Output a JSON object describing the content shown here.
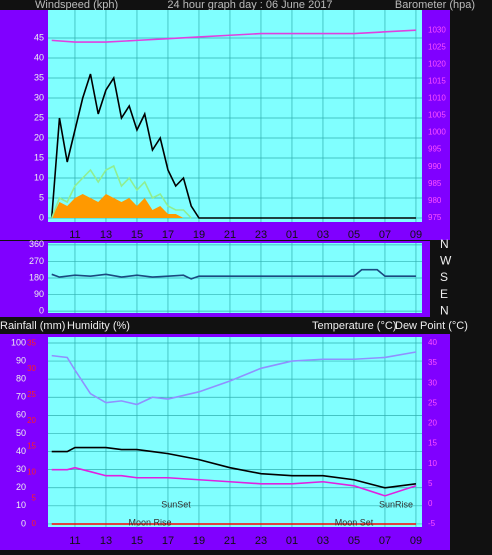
{
  "chart_data": [
    {
      "type": "line",
      "title": "24 hour graph day : 06 June 2017",
      "ylabel": "Windspeed (kph)",
      "y2label": "Barometer (hpa)",
      "xlim": [
        9.26,
        33.39
      ],
      "xticks": [
        11,
        13,
        15,
        17,
        19,
        21,
        23,
        {
          "value": 25,
          "label": "01"
        },
        {
          "value": 27,
          "label": "03"
        },
        {
          "value": 29,
          "label": "05"
        },
        {
          "value": 31,
          "label": "07"
        },
        {
          "value": 33,
          "label": "09"
        }
      ],
      "ylim": [
        -1,
        52
      ],
      "yticks": [
        0,
        5,
        10,
        15,
        20,
        25,
        30,
        35,
        40,
        45
      ],
      "y2lim": [
        973.8,
        1035.9
      ],
      "y2ticks": [
        975,
        980,
        985,
        990,
        995,
        1000,
        1005,
        1010,
        1015,
        1020,
        1025,
        1030
      ],
      "grid": true,
      "series": [
        {
          "color": "#ff9900",
          "area": true,
          "x": [
            9.5,
            10,
            10.5,
            11,
            11.5,
            12,
            12.5,
            13,
            13.5,
            14,
            14.5,
            15,
            15.5,
            16,
            16.5,
            17,
            17.5,
            18,
            18.5
          ],
          "values": [
            0,
            4,
            3,
            5,
            6,
            5,
            4,
            6,
            5,
            4,
            5,
            3,
            5,
            2,
            3,
            1,
            1,
            0,
            0
          ]
        },
        {
          "color": "#000000",
          "x": [
            9.5,
            10,
            10.5,
            11,
            11.5,
            12,
            12.5,
            13,
            13.5,
            14,
            14.5,
            15,
            15.5,
            16,
            16.5,
            17,
            17.5,
            18,
            18.5,
            19,
            21,
            25,
            29,
            33
          ],
          "values": [
            0,
            25,
            14,
            22,
            30,
            36,
            26,
            32,
            35,
            25,
            28,
            22,
            26,
            17,
            20,
            12,
            8,
            10,
            3,
            0,
            0,
            0,
            0,
            0
          ]
        },
        {
          "color": "#90ee90",
          "x": [
            9.5,
            10,
            10.5,
            11,
            11.5,
            12,
            12.5,
            13,
            13.5,
            14,
            14.5,
            15,
            15.5,
            16,
            16.5,
            17,
            17.5,
            18,
            18.5
          ],
          "values": [
            0,
            5,
            4,
            8,
            10,
            12,
            9,
            12,
            13,
            8,
            10,
            7,
            9,
            5,
            6,
            3,
            2,
            2,
            0
          ]
        },
        {
          "color": "#e040e0",
          "axis": "y2",
          "x": [
            9.5,
            11,
            13,
            15,
            17,
            19,
            21,
            23,
            25,
            27,
            29,
            31,
            33
          ],
          "values": [
            1027,
            1026.5,
            1026.5,
            1027,
            1027.5,
            1028,
            1028.5,
            1029,
            1029,
            1029,
            1029,
            1029.5,
            1030
          ]
        }
      ]
    },
    {
      "type": "line",
      "xlim": [
        9.26,
        33.39
      ],
      "xticks": [
        11,
        13,
        15,
        17,
        19,
        21,
        23,
        {
          "value": 25,
          "label": "01"
        },
        {
          "value": 27,
          "label": "03"
        },
        {
          "value": 29,
          "label": "05"
        },
        {
          "value": 31,
          "label": "07"
        },
        {
          "value": 33,
          "label": "09"
        }
      ],
      "ylim": [
        -10,
        370
      ],
      "yticks": [
        0,
        90,
        180,
        270,
        360
      ],
      "y2lim": [
        -10,
        370
      ],
      "y2ticks": [
        {
          "value": 360,
          "label": "N"
        },
        {
          "value": 270,
          "label": "W"
        },
        {
          "value": 180,
          "label": "S"
        },
        {
          "value": 90,
          "label": "E"
        },
        {
          "value": 0,
          "label": "N"
        }
      ],
      "grid": true,
      "series": [
        {
          "color": "#1a4a80",
          "x": [
            9.5,
            10,
            11,
            12,
            13,
            14,
            15,
            16,
            17,
            18,
            18.5,
            19,
            21,
            23,
            25,
            27,
            29,
            29.5,
            30.5,
            31,
            33
          ],
          "values": [
            200,
            185,
            195,
            190,
            200,
            185,
            195,
            185,
            190,
            195,
            175,
            190,
            190,
            190,
            190,
            190,
            190,
            225,
            225,
            190,
            190
          ]
        }
      ]
    },
    {
      "type": "line",
      "ylabel": "Humidity (%)",
      "y3label": "Rainfall (mm)",
      "y2label": "Temperature (°C)",
      "y2label2": "Dew Point (°C)",
      "xlim": [
        9.26,
        33.39
      ],
      "xticks": [
        11,
        13,
        15,
        17,
        19,
        21,
        23,
        {
          "value": 25,
          "label": "01"
        },
        {
          "value": 27,
          "label": "03"
        },
        {
          "value": 29,
          "label": "05"
        },
        {
          "value": 31,
          "label": "07"
        },
        {
          "value": 33,
          "label": "09"
        }
      ],
      "ylim": [
        -1.7,
        103.3
      ],
      "yticks": [
        0,
        10,
        20,
        30,
        40,
        50,
        60,
        70,
        80,
        90,
        100
      ],
      "y2lim": [
        -5.75,
        41.5
      ],
      "y2ticks": [
        -5,
        0,
        5,
        10,
        15,
        20,
        25,
        30,
        35,
        40
      ],
      "y3lim": [
        -0.58,
        36.2
      ],
      "y3ticks": [
        0,
        5,
        10,
        15,
        20,
        25,
        30,
        35
      ],
      "grid": true,
      "annotations": [
        "SunSet",
        "SunRise",
        "Moon Rise",
        "Moon Set"
      ],
      "series": [
        {
          "color": "#9090ff",
          "x": [
            9.5,
            10.5,
            11,
            12,
            13,
            14,
            15,
            16,
            17,
            19,
            21,
            23,
            25,
            27,
            29,
            31,
            33
          ],
          "values": [
            93,
            92,
            85,
            72,
            67,
            68,
            66,
            70,
            69,
            73,
            79,
            86,
            90,
            91,
            91,
            92,
            95
          ]
        },
        {
          "color": "#000000",
          "axis": "y2",
          "x": [
            9.5,
            10.5,
            11,
            12,
            13,
            14,
            15,
            16,
            17,
            19,
            21,
            23,
            25,
            27,
            29,
            31,
            33
          ],
          "values": [
            13,
            13,
            14,
            14,
            14,
            13.5,
            13.5,
            13,
            12.5,
            11,
            9,
            7.5,
            7,
            7,
            6,
            4,
            5
          ]
        },
        {
          "color": "#e020e0",
          "axis": "y2",
          "x": [
            9.5,
            10.5,
            11,
            12,
            13,
            14,
            15,
            16,
            17,
            19,
            21,
            23,
            25,
            27,
            29,
            31,
            33
          ],
          "values": [
            8.5,
            8.5,
            9,
            8,
            7,
            7,
            6.5,
            6.5,
            6.5,
            6,
            5.5,
            5,
            5,
            5.5,
            4.5,
            2,
            4.5
          ]
        },
        {
          "color": "#ff0000",
          "axis": "y3",
          "x": [
            9.5,
            33
          ],
          "values": [
            0,
            0
          ]
        }
      ]
    }
  ]
}
